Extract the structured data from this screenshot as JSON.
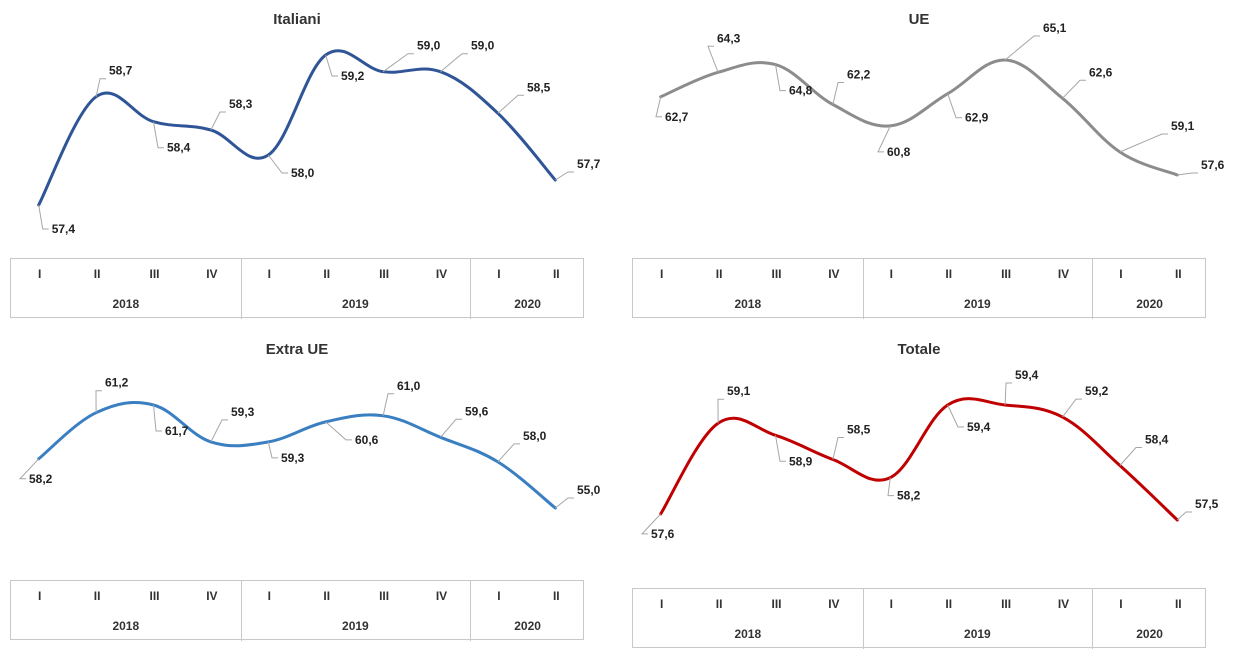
{
  "chart_data": [
    {
      "type": "line",
      "title": "Italiani",
      "color": "#2f5597",
      "quarters": [
        "I",
        "II",
        "III",
        "IV",
        "I",
        "II",
        "III",
        "IV",
        "I",
        "II"
      ],
      "years": [
        "2018",
        "2019",
        "2020"
      ],
      "labels": [
        "57,4",
        "58,7",
        "58,4",
        "58,3",
        "58,0",
        "59,2",
        "59,0",
        "59,0",
        "58,5",
        "57,7"
      ],
      "values": [
        57.4,
        58.7,
        58.4,
        58.3,
        58.0,
        59.2,
        59.0,
        59.0,
        58.5,
        57.7
      ],
      "legend": "none"
    },
    {
      "type": "line",
      "title": "UE",
      "color": "#8c8c8c",
      "quarters": [
        "I",
        "II",
        "III",
        "IV",
        "I",
        "II",
        "III",
        "IV",
        "I",
        "II"
      ],
      "years": [
        "2018",
        "2019",
        "2020"
      ],
      "labels": [
        "62,7",
        "64,3",
        "64,8",
        "62,2",
        "60,8",
        "62,9",
        "65,1",
        "62,6",
        "59,1",
        "57,6"
      ],
      "values": [
        62.7,
        64.3,
        64.8,
        62.2,
        60.8,
        62.9,
        65.1,
        62.6,
        59.1,
        57.6
      ],
      "legend": "none"
    },
    {
      "type": "line",
      "title": "Extra UE",
      "color": "#3a7fc1",
      "quarters": [
        "I",
        "II",
        "III",
        "IV",
        "I",
        "II",
        "III",
        "IV",
        "I",
        "II"
      ],
      "years": [
        "2018",
        "2019",
        "2020"
      ],
      "labels": [
        "58,2",
        "61,2",
        "61,7",
        "59,3",
        "59,3",
        "60,6",
        "61,0",
        "59,6",
        "58,0",
        "55,0"
      ],
      "values": [
        58.2,
        61.2,
        61.7,
        59.3,
        59.3,
        60.6,
        61.0,
        59.6,
        58.0,
        55.0
      ],
      "legend": "none"
    },
    {
      "type": "line",
      "title": "Totale",
      "color": "#c00000",
      "quarters": [
        "I",
        "II",
        "III",
        "IV",
        "I",
        "II",
        "III",
        "IV",
        "I",
        "II"
      ],
      "years": [
        "2018",
        "2019",
        "2020"
      ],
      "labels": [
        "57,6",
        "59,1",
        "58,9",
        "58,5",
        "58,2",
        "59,4",
        "59,4",
        "59,2",
        "58,4",
        "57,5"
      ],
      "values": [
        57.6,
        59.1,
        58.9,
        58.5,
        58.2,
        59.4,
        59.4,
        59.2,
        58.4,
        57.5
      ],
      "legend": "none"
    }
  ]
}
